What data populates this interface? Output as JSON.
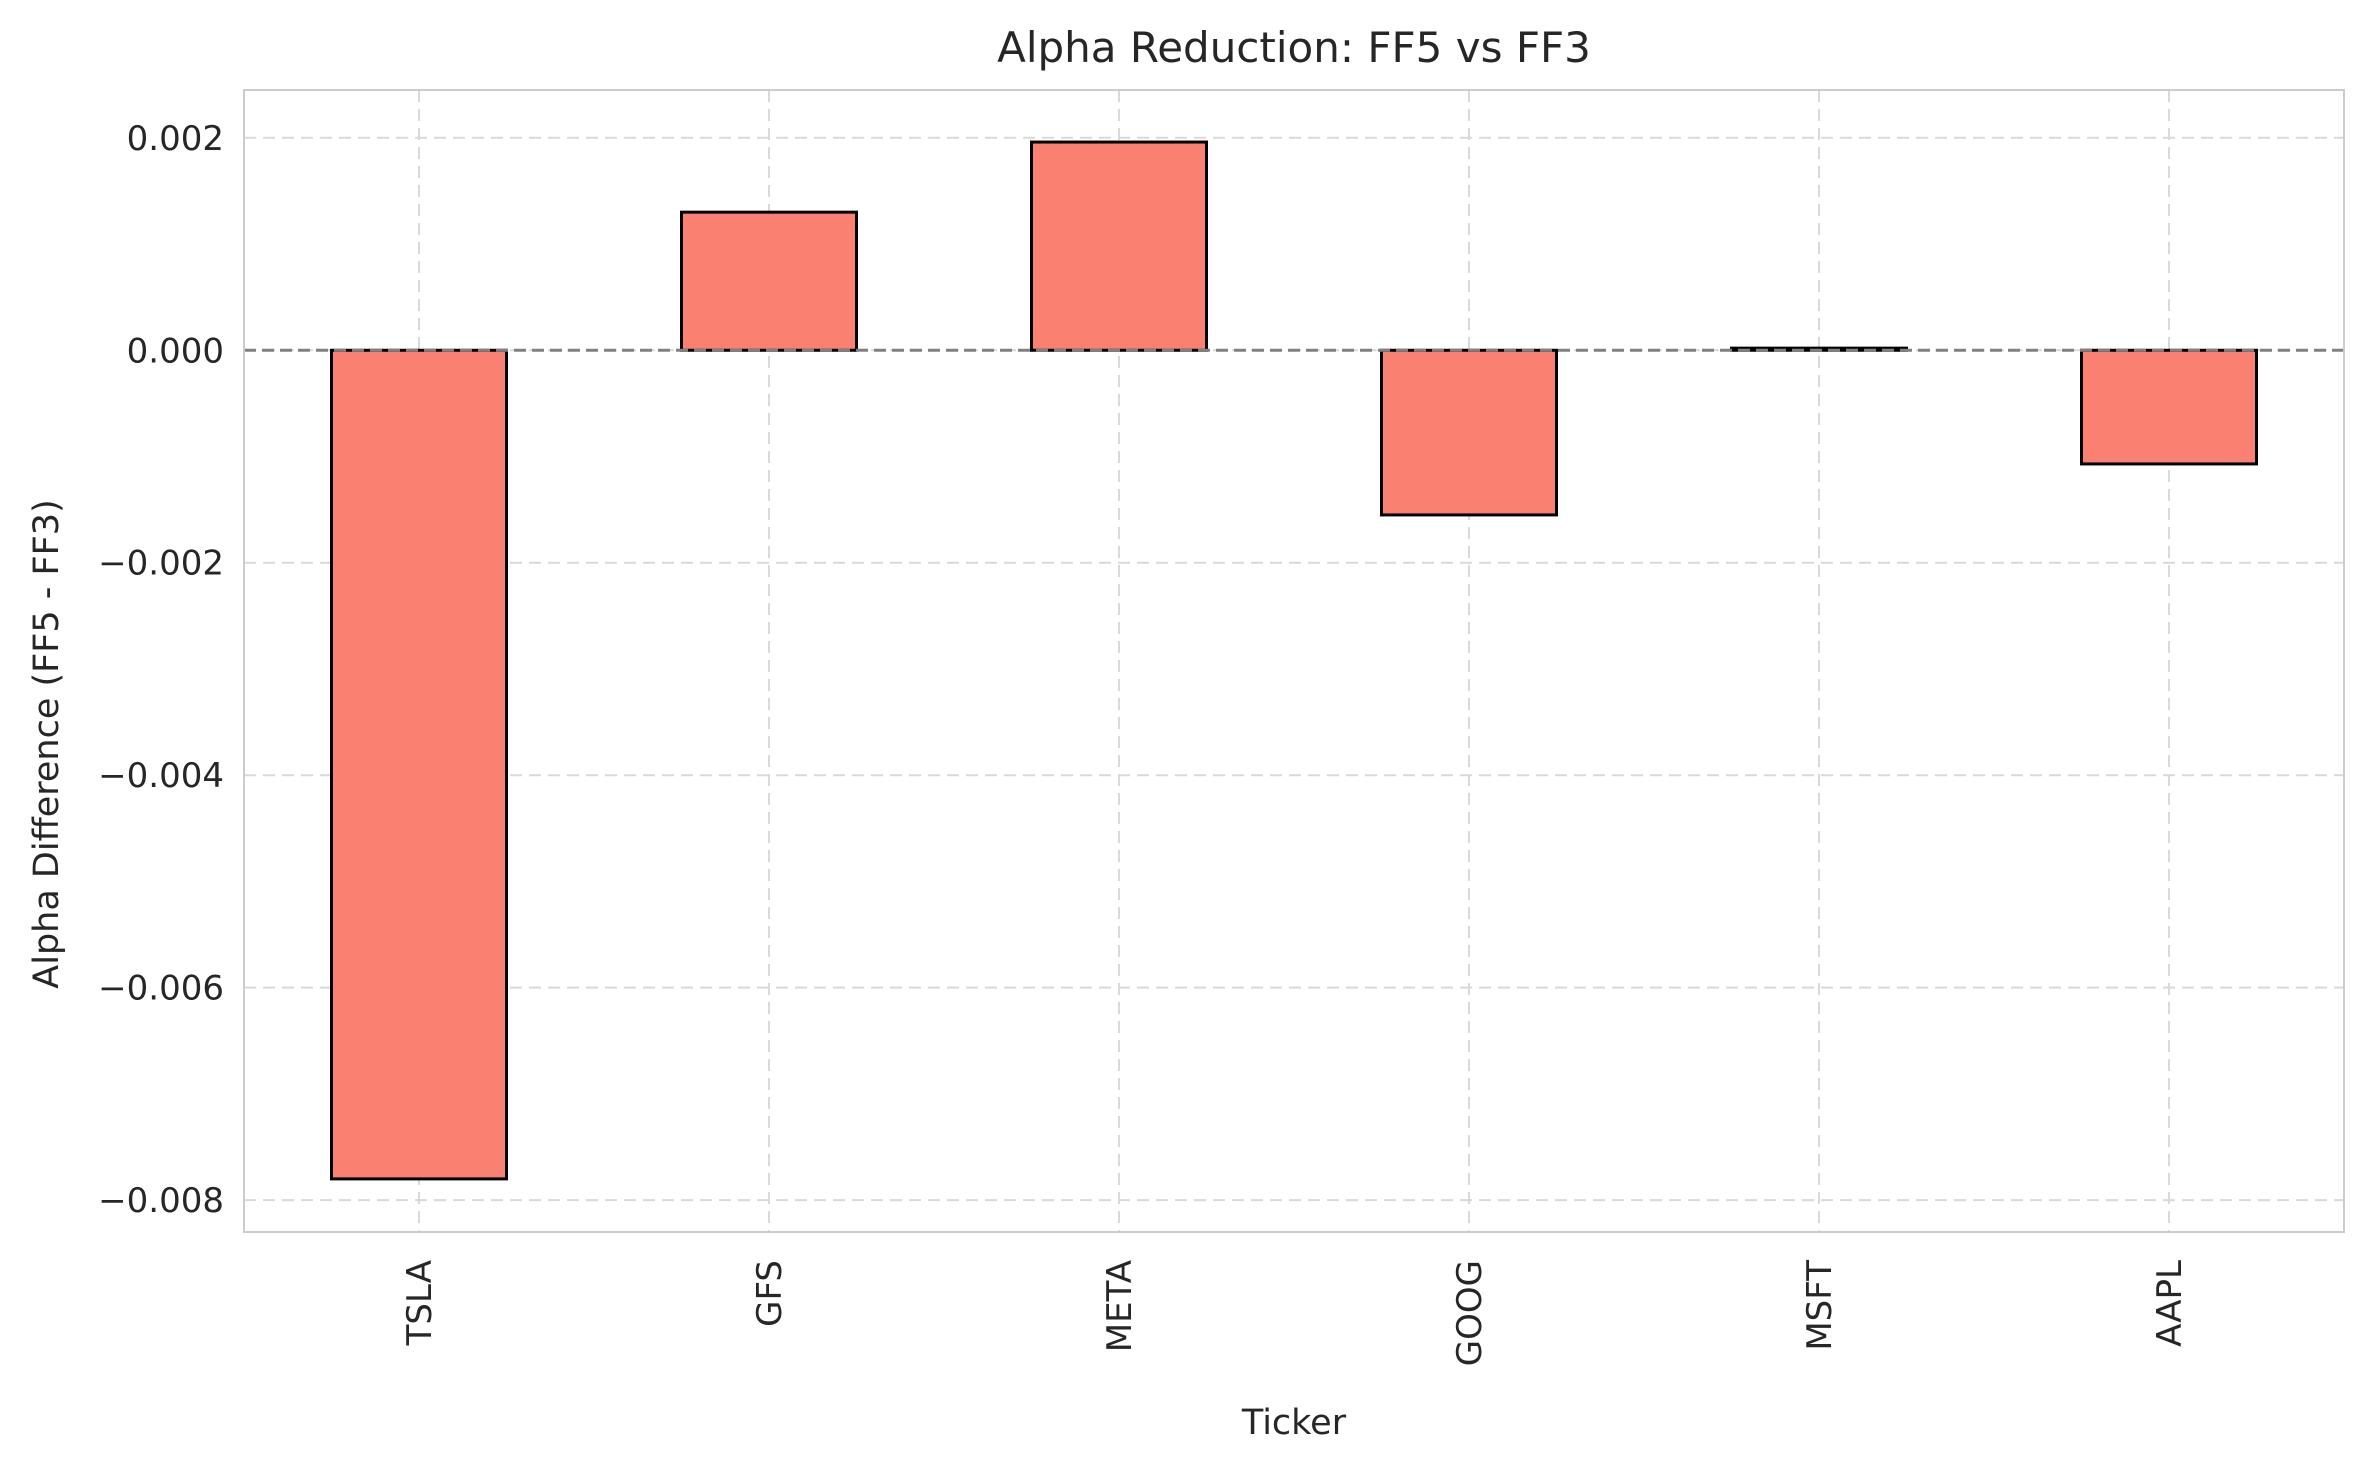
{
  "chart_data": {
    "type": "bar",
    "title": "Alpha Reduction: FF5 vs FF3",
    "xlabel": "Ticker",
    "ylabel": "Alpha Difference (FF5 - FF3)",
    "categories": [
      "TSLA",
      "GFS",
      "META",
      "GOOG",
      "MSFT",
      "AAPL"
    ],
    "values": [
      -0.0078,
      0.0013,
      0.00196,
      -0.00155,
      2e-05,
      -0.00107
    ],
    "ylim": [
      -0.0083,
      0.00245
    ],
    "yticks": [
      0.002,
      0.0,
      -0.002,
      -0.004,
      -0.006,
      -0.008
    ],
    "ytick_labels": [
      "0.002",
      "0.000",
      "−0.002",
      "−0.004",
      "−0.006",
      "−0.008"
    ],
    "grid": true,
    "zero_line": true,
    "bar_color": "#fa8072",
    "bar_edge_color": "#000000",
    "reference_line_color": "#808080",
    "grid_color": "#d9d9d9",
    "axes_edge_color": "#cccccc"
  }
}
